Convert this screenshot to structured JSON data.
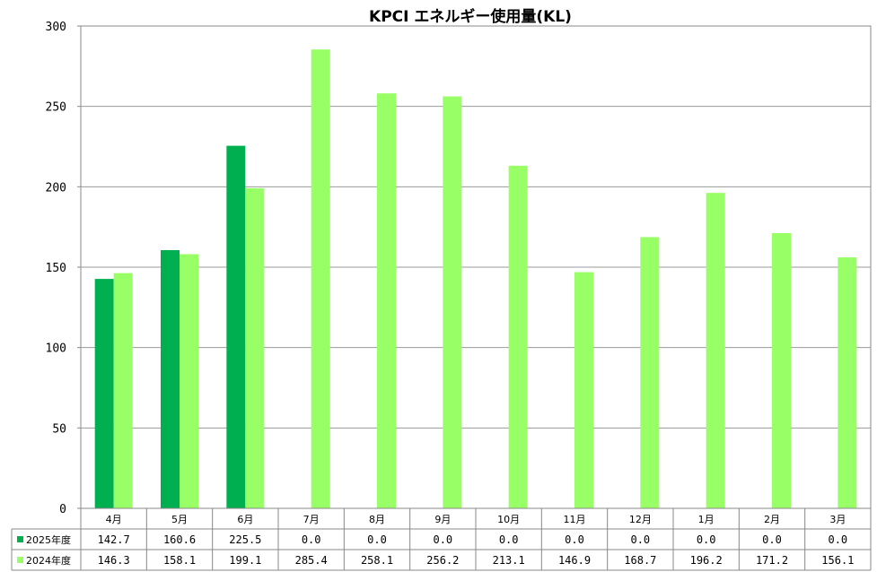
{
  "chart_data": {
    "type": "bar",
    "title": "KPCI エネルギー使用量(KL)",
    "categories": [
      "4月",
      "5月",
      "6月",
      "7月",
      "8月",
      "9月",
      "10月",
      "11月",
      "12月",
      "1月",
      "2月",
      "3月"
    ],
    "ylim": [
      0,
      300
    ],
    "yticks": [
      0,
      50,
      100,
      150,
      200,
      250,
      300
    ],
    "grid": true,
    "legend": "table-bottom",
    "series": [
      {
        "name": "2025年度",
        "color": "#00b050",
        "values": [
          142.7,
          160.6,
          225.5,
          0.0,
          0.0,
          0.0,
          0.0,
          0.0,
          0.0,
          0.0,
          0.0,
          0.0
        ],
        "labels": [
          "142.7",
          "160.6",
          "225.5",
          "0.0",
          "0.0",
          "0.0",
          "0.0",
          "0.0",
          "0.0",
          "0.0",
          "0.0",
          "0.0"
        ]
      },
      {
        "name": "2024年度",
        "color": "#99ff66",
        "values": [
          146.3,
          158.1,
          199.1,
          285.4,
          258.1,
          256.2,
          213.1,
          146.9,
          168.7,
          196.2,
          171.2,
          156.1
        ],
        "labels": [
          "146.3",
          "158.1",
          "199.1",
          "285.4",
          "258.1",
          "256.2",
          "213.1",
          "146.9",
          "168.7",
          "196.2",
          "171.2",
          "156.1"
        ]
      }
    ]
  }
}
